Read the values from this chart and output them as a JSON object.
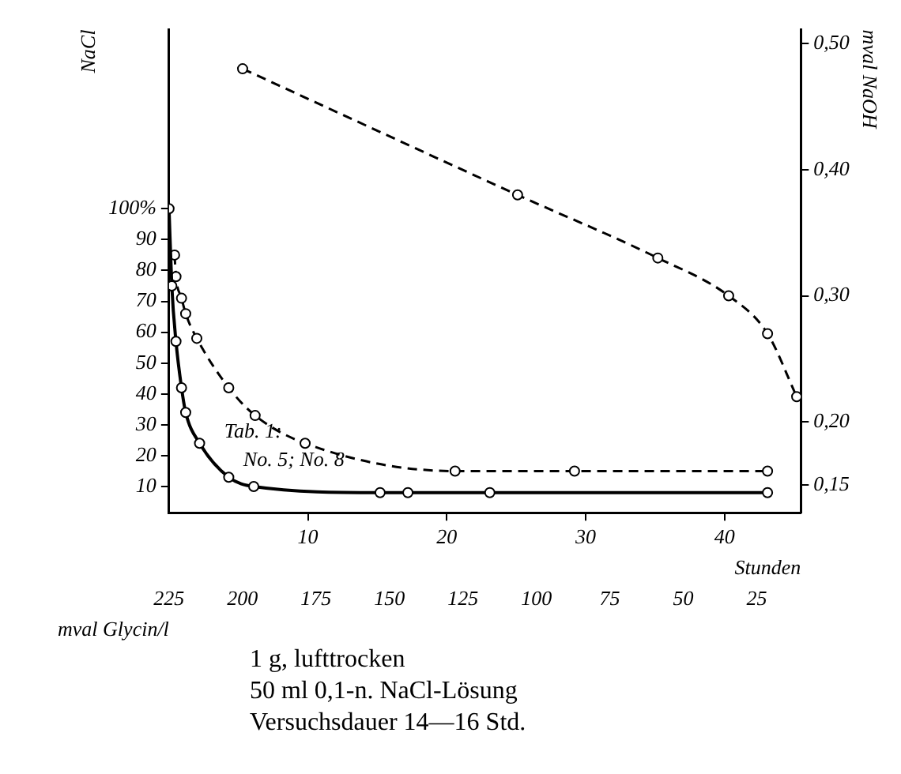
{
  "chart_data": {
    "type": "line",
    "xlabel": "Stunden",
    "x2label": "mval Glycin/l",
    "ylabel": "NaCl",
    "y2label": "mval NaOH",
    "xlim": [
      0,
      45.5
    ],
    "xticks": [
      10,
      20,
      30,
      40
    ],
    "x2lim": [
      225,
      10
    ],
    "x2ticks": [
      225,
      200,
      175,
      150,
      125,
      100,
      75,
      50,
      25
    ],
    "ylim": [
      1.5,
      158
    ],
    "yticks": [
      10,
      20,
      30,
      40,
      50,
      60,
      70,
      80,
      90,
      {
        "value": 100,
        "label": "100%"
      }
    ],
    "y2lim": [
      0.128,
      0.511
    ],
    "y2ticks": [
      {
        "value": 0.15,
        "label": "0,15"
      },
      {
        "value": 0.2,
        "label": "0,20"
      },
      {
        "value": 0.3,
        "label": "0,30"
      },
      {
        "value": 0.4,
        "label": "0,40"
      },
      {
        "value": 0.5,
        "label": "0,50"
      }
    ],
    "marker": "circle",
    "series": [
      {
        "color": "#000000",
        "line_style": "solid",
        "x": [
          0,
          0.2,
          0.5,
          0.9,
          1.2,
          2.2,
          4.3,
          6.1,
          15.2,
          17.2,
          23.1,
          43.1
        ],
        "values": [
          100,
          75,
          57,
          42,
          34,
          24,
          13,
          10,
          8,
          8,
          8,
          8
        ]
      },
      {
        "color": "#000000",
        "line_style": "dashed",
        "x": [
          0.4,
          0.5,
          0.9,
          1.2,
          2.0,
          4.3,
          6.2,
          9.8,
          20.6,
          29.2,
          43.1
        ],
        "values": [
          85,
          78,
          71,
          66,
          58,
          42,
          33,
          24,
          15,
          15,
          15
        ]
      },
      {
        "color": "#000000",
        "line_style": "dashed",
        "axis": "y2",
        "x": [
          5.3,
          25.1,
          35.2,
          40.3,
          43.1,
          45.2
        ],
        "values": [
          0.48,
          0.38,
          0.33,
          0.3,
          0.27,
          0.22
        ]
      }
    ],
    "annotations": [
      "Tab. 1:",
      "No. 5; No. 8",
      "1 g, lufttrocken",
      "50 ml 0,1-n. NaCl-Lösung",
      "Versuchsdauer 14—16 Std."
    ]
  }
}
